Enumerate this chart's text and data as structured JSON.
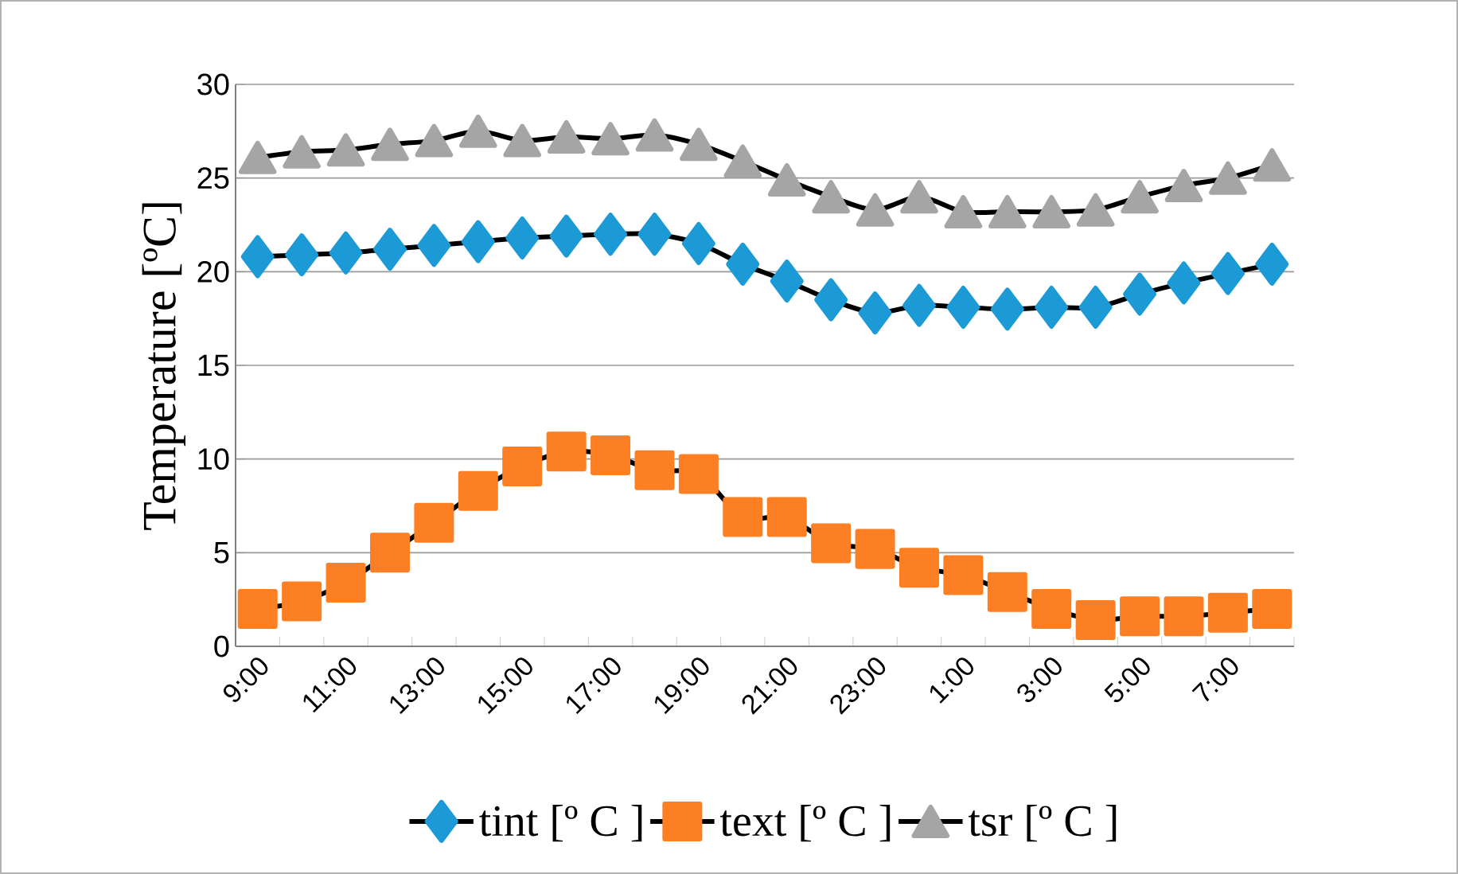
{
  "chart_data": {
    "type": "line",
    "ylabel": "Temperature [ºC]",
    "categories": [
      "9:00",
      null,
      "11:00",
      null,
      "13:00",
      null,
      "15:00",
      null,
      "17:00",
      null,
      "19:00",
      null,
      "21:00",
      null,
      "23:00",
      null,
      "1:00",
      null,
      "3:00",
      null,
      "5:00",
      null,
      "7:00",
      null
    ],
    "series": [
      {
        "name": "tint [º C ]",
        "color": "#1b9ad6",
        "marker": "diamond",
        "values": [
          20.8,
          20.9,
          21.0,
          21.2,
          21.4,
          21.6,
          21.8,
          21.9,
          22.0,
          22.0,
          21.5,
          20.4,
          19.5,
          18.5,
          17.8,
          18.2,
          18.1,
          18.0,
          18.1,
          18.1,
          18.8,
          19.4,
          19.9,
          20.4
        ]
      },
      {
        "name": "text [º C ]",
        "color": "#fd7f23",
        "marker": "square",
        "values": [
          2.0,
          2.4,
          3.4,
          5.0,
          6.6,
          8.3,
          9.6,
          10.4,
          10.2,
          9.4,
          9.2,
          6.9,
          6.9,
          5.5,
          5.2,
          4.2,
          3.8,
          2.9,
          2.0,
          1.4,
          1.6,
          1.6,
          1.8,
          2.0
        ]
      },
      {
        "name": "tsr [º C ]",
        "color": "#a5a5a5",
        "marker": "triangle",
        "values": [
          26.1,
          26.4,
          26.5,
          26.8,
          27.0,
          27.5,
          27.0,
          27.2,
          27.1,
          27.3,
          26.8,
          25.9,
          24.9,
          24.0,
          23.3,
          24.0,
          23.2,
          23.2,
          23.2,
          23.3,
          24.0,
          24.6,
          25.0,
          25.7
        ]
      }
    ],
    "ylim": [
      0,
      30
    ],
    "yticks": [
      0,
      5,
      10,
      15,
      20,
      25,
      30
    ],
    "grid": "y",
    "legend": "bottom"
  }
}
